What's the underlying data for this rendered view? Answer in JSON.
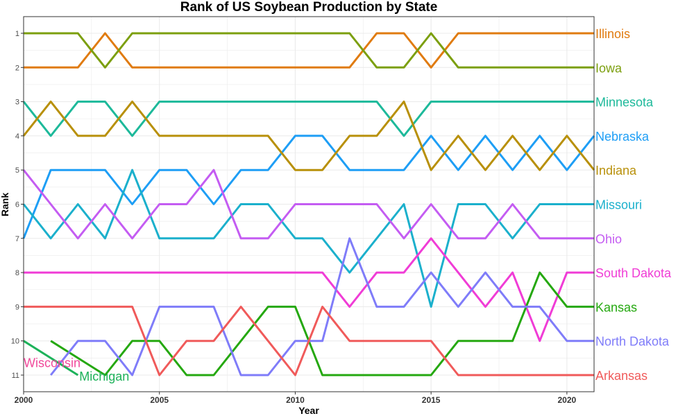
{
  "chart_data": {
    "type": "line",
    "title": "Rank of US Soybean Production by State",
    "xlabel": "Year",
    "ylabel": "Rank",
    "xlim": [
      2000,
      2021
    ],
    "ylim": [
      1,
      11
    ],
    "y_reversed": true,
    "x_ticks": [
      2000,
      2005,
      2010,
      2015,
      2020
    ],
    "y_ticks": [
      1,
      2,
      3,
      4,
      5,
      6,
      7,
      8,
      9,
      10,
      11
    ],
    "grid": true,
    "years": [
      2000,
      2001,
      2002,
      2003,
      2004,
      2005,
      2006,
      2007,
      2008,
      2009,
      2010,
      2011,
      2012,
      2013,
      2014,
      2015,
      2016,
      2017,
      2018,
      2019,
      2020,
      2021
    ],
    "series": [
      {
        "name": "Illinois",
        "color": "#E07B10",
        "values": [
          2,
          2,
          2,
          1,
          2,
          2,
          2,
          2,
          2,
          2,
          2,
          2,
          2,
          1,
          1,
          2,
          1,
          1,
          1,
          1,
          1,
          1
        ]
      },
      {
        "name": "Iowa",
        "color": "#7C9F0F",
        "values": [
          1,
          1,
          1,
          2,
          1,
          1,
          1,
          1,
          1,
          1,
          1,
          1,
          1,
          2,
          2,
          1,
          2,
          2,
          2,
          2,
          2,
          2
        ]
      },
      {
        "name": "Minnesota",
        "color": "#1DB99A",
        "values": [
          3,
          4,
          3,
          3,
          4,
          3,
          3,
          3,
          3,
          3,
          3,
          3,
          3,
          3,
          4,
          3,
          3,
          3,
          3,
          3,
          3,
          3
        ]
      },
      {
        "name": "Nebraska",
        "color": "#1E9EF5",
        "values": [
          7,
          5,
          5,
          5,
          6,
          5,
          5,
          6,
          5,
          5,
          4,
          4,
          5,
          5,
          5,
          4,
          5,
          4,
          5,
          4,
          5,
          4
        ]
      },
      {
        "name": "Indiana",
        "color": "#B8900A",
        "values": [
          4,
          3,
          4,
          4,
          3,
          4,
          4,
          4,
          4,
          4,
          5,
          5,
          4,
          4,
          3,
          5,
          4,
          5,
          4,
          5,
          4,
          5
        ]
      },
      {
        "name": "Missouri",
        "color": "#1BB0CC",
        "values": [
          6,
          7,
          6,
          7,
          5,
          7,
          7,
          7,
          6,
          6,
          7,
          7,
          8,
          7,
          6,
          9,
          6,
          6,
          7,
          6,
          6,
          6
        ]
      },
      {
        "name": "Ohio",
        "color": "#C45CF2",
        "values": [
          5,
          6,
          7,
          6,
          7,
          6,
          6,
          5,
          7,
          7,
          6,
          6,
          6,
          6,
          7,
          6,
          7,
          7,
          6,
          7,
          7,
          7
        ]
      },
      {
        "name": "South Dakota",
        "color": "#F03CD6",
        "values": [
          8,
          8,
          8,
          8,
          8,
          8,
          8,
          8,
          8,
          8,
          8,
          8,
          9,
          8,
          8,
          7,
          8,
          9,
          8,
          10,
          8,
          8
        ]
      },
      {
        "name": "Kansas",
        "color": "#25A810",
        "values": [
          null,
          10,
          null,
          11,
          10,
          10,
          11,
          11,
          10,
          9,
          9,
          11,
          11,
          11,
          11,
          11,
          10,
          10,
          10,
          8,
          9,
          9
        ]
      },
      {
        "name": "North Dakota",
        "color": "#7F7CF9",
        "values": [
          null,
          11,
          10,
          10,
          11,
          9,
          9,
          9,
          11,
          11,
          10,
          10,
          7,
          9,
          9,
          8,
          9,
          8,
          9,
          9,
          10,
          10
        ]
      },
      {
        "name": "Arkansas",
        "color": "#F05A5A",
        "values": [
          9,
          9,
          9,
          9,
          9,
          11,
          10,
          10,
          9,
          10,
          11,
          9,
          10,
          10,
          10,
          10,
          11,
          11,
          11,
          11,
          11,
          11
        ]
      },
      {
        "name": "Michigan",
        "color": "#1DB25A",
        "values": [
          10,
          null,
          11,
          null,
          null,
          null,
          null,
          null,
          null,
          null,
          null,
          null,
          null,
          null,
          null,
          null,
          null,
          null,
          null,
          null,
          null,
          null
        ]
      },
      {
        "name": "Wisconsin",
        "color": "#F0489A",
        "values": []
      }
    ]
  }
}
